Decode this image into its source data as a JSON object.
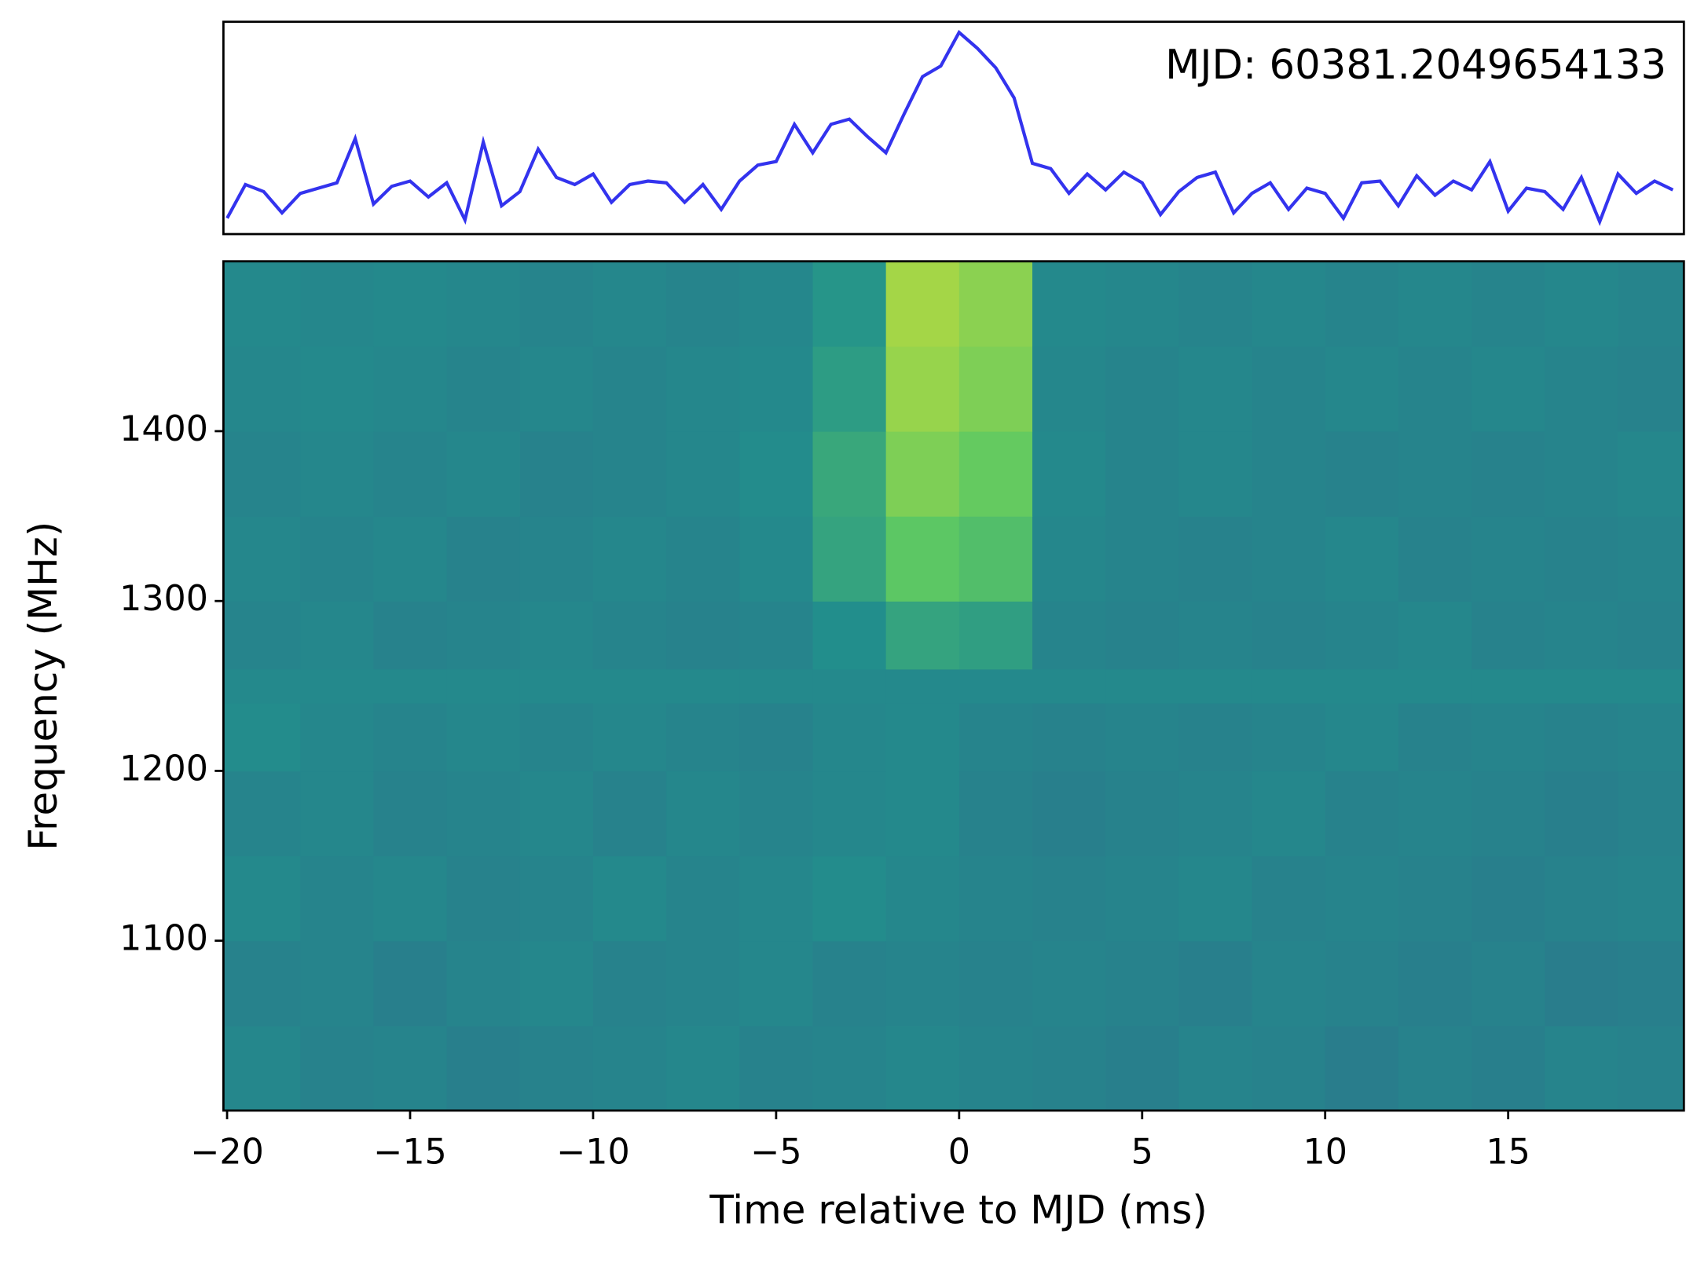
{
  "chart_data": [
    {
      "type": "line",
      "annotation": "MJD: 60381.2049654133",
      "color": "#3333ee",
      "xlim": [
        -20.1,
        19.8
      ],
      "ylim": [
        -2,
        10
      ],
      "x": [
        -20,
        -19.5,
        -19,
        -18.5,
        -18,
        -17.5,
        -17,
        -16.5,
        -16,
        -15.5,
        -15,
        -14.5,
        -14,
        -13.5,
        -13,
        -12.5,
        -12,
        -11.5,
        -11,
        -10.5,
        -10,
        -9.5,
        -9,
        -8.5,
        -8,
        -7.5,
        -7,
        -6.5,
        -6,
        -5.5,
        -5,
        -4.5,
        -4,
        -3.5,
        -3,
        -2.5,
        -2,
        -1.5,
        -1,
        -0.5,
        0,
        0.5,
        1,
        1.5,
        2,
        2.5,
        3,
        3.5,
        4,
        4.5,
        5,
        5.5,
        6,
        6.5,
        7,
        7.5,
        8,
        8.5,
        9,
        9.5,
        10,
        10.5,
        11,
        11.5,
        12,
        12.5,
        13,
        13.5,
        14,
        14.5,
        15,
        15.5,
        16,
        16.5,
        17,
        17.5,
        18,
        18.5,
        19,
        19.5
      ],
      "values": [
        -1.1,
        0.8,
        0.4,
        -0.8,
        0.3,
        0.6,
        0.9,
        3.4,
        -0.3,
        0.7,
        1.0,
        0.1,
        0.9,
        -1.2,
        3.2,
        -0.4,
        0.4,
        2.8,
        1.2,
        0.8,
        1.4,
        -0.2,
        0.8,
        1.0,
        0.9,
        -0.2,
        0.8,
        -0.6,
        1.0,
        1.9,
        2.1,
        4.2,
        2.6,
        4.2,
        4.5,
        3.5,
        2.6,
        4.8,
        6.9,
        7.5,
        9.4,
        8.5,
        7.4,
        5.7,
        2.0,
        1.7,
        0.3,
        1.4,
        0.5,
        1.5,
        0.9,
        -0.9,
        0.4,
        1.2,
        1.5,
        -0.8,
        0.3,
        0.9,
        -0.6,
        0.6,
        0.3,
        -1.1,
        0.9,
        1.0,
        -0.4,
        1.3,
        0.2,
        1.0,
        0.5,
        2.1,
        -0.7,
        0.6,
        0.4,
        -0.6,
        1.2,
        -1.3,
        1.4,
        0.3,
        1.0,
        0.5
      ]
    },
    {
      "type": "heatmap",
      "colormap": "viridis",
      "xlabel": "Time relative to MJD (ms)",
      "ylabel": "Frequency (MHz)",
      "xlim": [
        -20.1,
        19.8
      ],
      "ylim": [
        1000,
        1500
      ],
      "xticks": [
        {
          "value": -20,
          "label": "−20"
        },
        {
          "value": -15,
          "label": "−15"
        },
        {
          "value": -10,
          "label": "−10"
        },
        {
          "value": -5,
          "label": "−5"
        },
        0,
        5,
        10,
        15
      ],
      "yticks": [
        1100,
        1200,
        1300,
        1400
      ],
      "x_edges": [
        -20.1,
        -18,
        -16,
        -14,
        -12,
        -10,
        -8,
        -6,
        -4,
        -2,
        0,
        2,
        4,
        6,
        8,
        10,
        12,
        14,
        16,
        18,
        19.8
      ],
      "y_edges": [
        1000,
        1050,
        1100,
        1150,
        1200,
        1240,
        1260,
        1300,
        1350,
        1400,
        1450,
        1500
      ],
      "z": [
        [
          0.46,
          0.44,
          0.45,
          0.43,
          0.44,
          0.45,
          0.46,
          0.44,
          0.45,
          0.46,
          0.45,
          0.44,
          0.43,
          0.45,
          0.44,
          0.42,
          0.44,
          0.43,
          0.45,
          0.44
        ],
        [
          0.44,
          0.45,
          0.43,
          0.45,
          0.46,
          0.44,
          0.45,
          0.46,
          0.44,
          0.45,
          0.44,
          0.45,
          0.44,
          0.43,
          0.45,
          0.44,
          0.43,
          0.44,
          0.42,
          0.43
        ],
        [
          0.47,
          0.45,
          0.46,
          0.44,
          0.45,
          0.47,
          0.45,
          0.46,
          0.48,
          0.46,
          0.45,
          0.44,
          0.45,
          0.46,
          0.44,
          0.45,
          0.44,
          0.43,
          0.44,
          0.45
        ],
        [
          0.45,
          0.46,
          0.44,
          0.45,
          0.46,
          0.44,
          0.46,
          0.45,
          0.46,
          0.47,
          0.44,
          0.43,
          0.44,
          0.45,
          0.46,
          0.44,
          0.45,
          0.44,
          0.43,
          0.44
        ],
        [
          0.48,
          0.46,
          0.45,
          0.46,
          0.45,
          0.46,
          0.45,
          0.44,
          0.46,
          0.47,
          0.45,
          0.44,
          0.45,
          0.44,
          0.45,
          0.46,
          0.44,
          0.45,
          0.44,
          0.45
        ],
        [
          0.47,
          0.47,
          0.47,
          0.47,
          0.47,
          0.47,
          0.47,
          0.47,
          0.47,
          0.47,
          0.47,
          0.47,
          0.47,
          0.47,
          0.47,
          0.47,
          0.47,
          0.47,
          0.47,
          0.47
        ],
        [
          0.45,
          0.46,
          0.44,
          0.45,
          0.46,
          0.45,
          0.44,
          0.45,
          0.49,
          0.58,
          0.56,
          0.45,
          0.44,
          0.45,
          0.44,
          0.45,
          0.46,
          0.44,
          0.45,
          0.44
        ],
        [
          0.46,
          0.45,
          0.46,
          0.44,
          0.45,
          0.46,
          0.45,
          0.47,
          0.58,
          0.74,
          0.7,
          0.46,
          0.45,
          0.44,
          0.45,
          0.46,
          0.44,
          0.45,
          0.44,
          0.45
        ],
        [
          0.45,
          0.46,
          0.45,
          0.46,
          0.44,
          0.45,
          0.46,
          0.48,
          0.6,
          0.8,
          0.76,
          0.47,
          0.45,
          0.46,
          0.45,
          0.44,
          0.45,
          0.44,
          0.45,
          0.46
        ],
        [
          0.46,
          0.47,
          0.46,
          0.45,
          0.46,
          0.45,
          0.46,
          0.47,
          0.55,
          0.84,
          0.8,
          0.46,
          0.45,
          0.46,
          0.45,
          0.46,
          0.45,
          0.46,
          0.45,
          0.44
        ],
        [
          0.47,
          0.46,
          0.47,
          0.46,
          0.45,
          0.46,
          0.45,
          0.46,
          0.52,
          0.86,
          0.82,
          0.47,
          0.46,
          0.45,
          0.46,
          0.45,
          0.46,
          0.45,
          0.46,
          0.45
        ]
      ]
    }
  ]
}
